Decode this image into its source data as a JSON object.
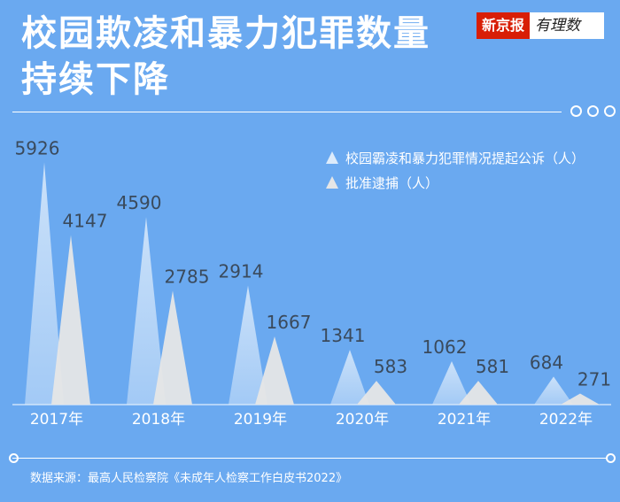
{
  "header": {
    "title_line1": "校园欺凌和暴力犯罪数量",
    "title_line2": "持续下降",
    "logo_red": "新京报",
    "logo_white": "有理数"
  },
  "source": "数据来源：最高人民检察院《未成年人检察工作白皮书2022》",
  "colors": {
    "background": "#6aa9f0",
    "series1": "#dcebfb",
    "series2": "#e6e6e6"
  },
  "chart_data": {
    "type": "bar",
    "categories": [
      "2017年",
      "2018年",
      "2019年",
      "2020年",
      "2021年",
      "2022年"
    ],
    "series": [
      {
        "name": "校园霸凌和暴力犯罪情况提起公诉（人）",
        "values": [
          5926,
          4590,
          2914,
          1341,
          1062,
          684
        ],
        "labels": [
          "5926",
          "4590",
          "2914",
          "1341",
          "1062",
          "684"
        ]
      },
      {
        "name": "批准逮捕（人）",
        "values": [
          4147,
          2785,
          1667,
          583,
          581,
          271
        ],
        "labels": [
          "4147",
          "2785",
          "1667",
          "583",
          "581",
          "271"
        ]
      }
    ],
    "ylim": [
      0,
      6000
    ],
    "grid": false,
    "legend": "top-right"
  }
}
